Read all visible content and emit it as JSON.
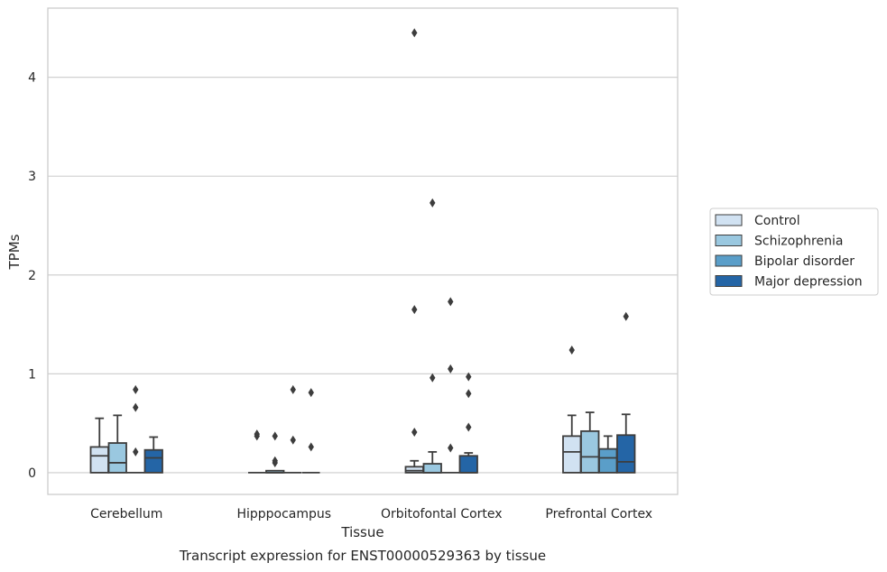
{
  "chart_data": {
    "type": "box",
    "title": "",
    "caption": "Transcript expression for ENST00000529363 by tissue",
    "xlabel": "Tissue",
    "ylabel": "TPMs",
    "ylim": [
      -0.22,
      4.7
    ],
    "yticks": [
      0,
      1,
      2,
      3,
      4
    ],
    "grid": "horizontal",
    "legend_position": "right",
    "categories": [
      "Cerebellum",
      "Hipppocampus",
      "Orbitofontal Cortex",
      "Prefrontal Cortex"
    ],
    "series": [
      {
        "name": "Control",
        "color": "#d1e2f2",
        "boxes": [
          {
            "whislo": 0,
            "q1": 0,
            "med": 0.17,
            "q3": 0.26,
            "whishi": 0.55,
            "fliers": []
          },
          {
            "whislo": 0,
            "q1": 0,
            "med": 0,
            "q3": 0,
            "whishi": 0,
            "fliers": [
              0.37,
              0.39
            ]
          },
          {
            "whislo": 0,
            "q1": 0,
            "med": 0.02,
            "q3": 0.06,
            "whishi": 0.12,
            "fliers": [
              0.41,
              1.65,
              4.45
            ]
          },
          {
            "whislo": 0,
            "q1": 0,
            "med": 0.21,
            "q3": 0.37,
            "whishi": 0.58,
            "fliers": [
              1.24
            ]
          }
        ]
      },
      {
        "name": "Schizophrenia",
        "color": "#9ac8e0",
        "boxes": [
          {
            "whislo": 0,
            "q1": 0,
            "med": 0.1,
            "q3": 0.3,
            "whishi": 0.58,
            "fliers": []
          },
          {
            "whislo": 0,
            "q1": 0,
            "med": 0,
            "q3": 0.02,
            "whishi": 0.02,
            "fliers": [
              0.1,
              0.12,
              0.37
            ]
          },
          {
            "whislo": 0,
            "q1": 0,
            "med": 0,
            "q3": 0.09,
            "whishi": 0.21,
            "fliers": [
              0.96,
              2.73
            ]
          },
          {
            "whislo": 0,
            "q1": 0,
            "med": 0.16,
            "q3": 0.42,
            "whishi": 0.61,
            "fliers": []
          }
        ]
      },
      {
        "name": "Bipolar disorder",
        "color": "#5a9ec9",
        "boxes": [
          {
            "whislo": 0,
            "q1": 0,
            "med": 0,
            "q3": 0,
            "whishi": 0,
            "fliers": [
              0.21,
              0.66,
              0.84
            ]
          },
          {
            "whislo": 0,
            "q1": 0,
            "med": 0,
            "q3": 0,
            "whishi": 0,
            "fliers": [
              0.33,
              0.84
            ]
          },
          {
            "whislo": 0,
            "q1": 0,
            "med": 0,
            "q3": 0,
            "whishi": 0,
            "fliers": [
              0.25,
              1.05,
              1.73
            ]
          },
          {
            "whislo": 0,
            "q1": 0,
            "med": 0.15,
            "q3": 0.24,
            "whishi": 0.37,
            "fliers": []
          }
        ]
      },
      {
        "name": "Major depression",
        "color": "#2465a6",
        "boxes": [
          {
            "whislo": 0,
            "q1": 0,
            "med": 0.15,
            "q3": 0.23,
            "whishi": 0.36,
            "fliers": []
          },
          {
            "whislo": 0,
            "q1": 0,
            "med": 0,
            "q3": 0,
            "whishi": 0,
            "fliers": [
              0.26,
              0.81
            ]
          },
          {
            "whislo": 0,
            "q1": 0,
            "med": 0,
            "q3": 0.17,
            "whishi": 0.2,
            "fliers": [
              0.46,
              0.8,
              0.97
            ]
          },
          {
            "whislo": 0,
            "q1": 0,
            "med": 0.11,
            "q3": 0.38,
            "whishi": 0.59,
            "fliers": [
              1.58
            ]
          }
        ]
      }
    ]
  }
}
